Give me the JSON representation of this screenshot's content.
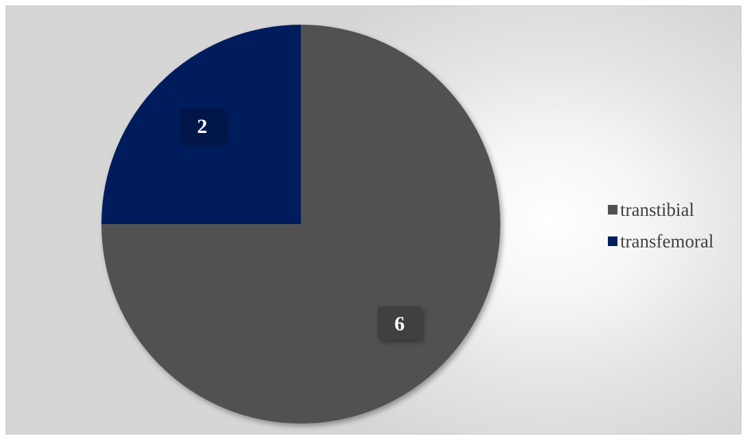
{
  "chart_data": {
    "type": "pie",
    "categories": [
      "transtibial",
      "transfemoral"
    ],
    "values": [
      6,
      2
    ],
    "colors": [
      "#515151",
      "#001f5c"
    ],
    "data_labels": [
      "6",
      "2"
    ],
    "start_angle_deg": 0,
    "direction": "clockwise",
    "legend_position": "right",
    "title": ""
  },
  "colors": {
    "label_box": "#3f3f3f",
    "label_box_dark": "#00184a",
    "legend_text": "#404040"
  }
}
